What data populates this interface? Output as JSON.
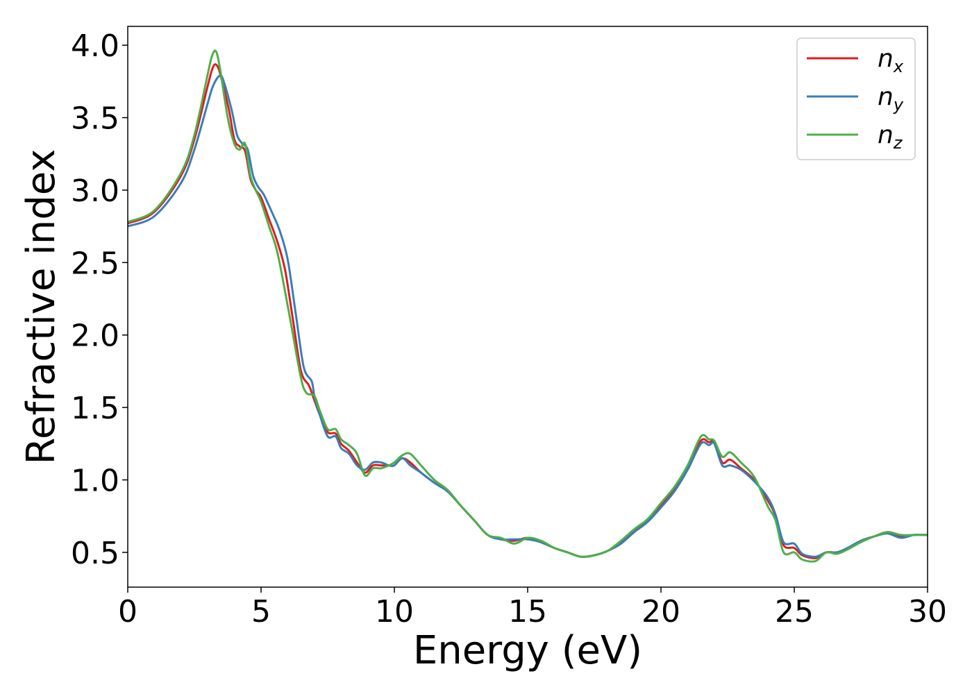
{
  "chart_data": {
    "type": "line",
    "title": "",
    "xlabel": "Energy (eV)",
    "ylabel": "Refractive index",
    "xlim": [
      0,
      30
    ],
    "ylim": [
      0.26,
      4.13
    ],
    "xticks": [
      0,
      5,
      10,
      15,
      20,
      25,
      30
    ],
    "xtick_labels": [
      "0",
      "5",
      "10",
      "15",
      "20",
      "25",
      "30"
    ],
    "yticks": [
      0.5,
      1.0,
      1.5,
      2.0,
      2.5,
      3.0,
      3.5,
      4.0
    ],
    "ytick_labels": [
      "0.5",
      "1.0",
      "1.5",
      "2.0",
      "2.5",
      "3.0",
      "3.5",
      "4.0"
    ],
    "grid": false,
    "legend_position": "top-right",
    "series": [
      {
        "name": "n",
        "subscript": "x",
        "color": "#e41a1c",
        "x": [
          0,
          1,
          2,
          2.5,
          3,
          3.2,
          3.35,
          3.5,
          3.8,
          4.0,
          4.2,
          4.4,
          4.6,
          4.8,
          5.0,
          5.3,
          5.6,
          5.9,
          6.2,
          6.5,
          6.8,
          7.0,
          7.2,
          7.5,
          7.8,
          8.0,
          8.3,
          8.6,
          8.9,
          9.2,
          9.5,
          9.8,
          10.0,
          10.3,
          10.6,
          11.0,
          11.5,
          12.0,
          12.5,
          13.0,
          13.5,
          14.0,
          14.5,
          15.0,
          15.5,
          16.0,
          16.5,
          17.0,
          17.5,
          18.0,
          18.5,
          19.0,
          19.5,
          20.0,
          20.5,
          21.0,
          21.5,
          21.8,
          22.0,
          22.3,
          22.6,
          23.0,
          23.5,
          24.0,
          24.3,
          24.6,
          25.0,
          25.3,
          25.8,
          26.2,
          26.6,
          27.0,
          27.5,
          28.0,
          28.5,
          29.0,
          29.5,
          30.0
        ],
        "y": [
          2.77,
          2.85,
          3.1,
          3.35,
          3.72,
          3.85,
          3.86,
          3.78,
          3.55,
          3.35,
          3.3,
          3.27,
          3.08,
          3.0,
          2.95,
          2.8,
          2.65,
          2.45,
          2.1,
          1.75,
          1.65,
          1.55,
          1.45,
          1.33,
          1.32,
          1.25,
          1.2,
          1.12,
          1.05,
          1.1,
          1.1,
          1.1,
          1.12,
          1.15,
          1.12,
          1.05,
          0.98,
          0.92,
          0.82,
          0.72,
          0.62,
          0.59,
          0.58,
          0.6,
          0.57,
          0.53,
          0.5,
          0.47,
          0.48,
          0.51,
          0.57,
          0.65,
          0.72,
          0.82,
          0.93,
          1.08,
          1.27,
          1.26,
          1.26,
          1.12,
          1.14,
          1.08,
          1.0,
          0.86,
          0.75,
          0.55,
          0.53,
          0.48,
          0.46,
          0.5,
          0.5,
          0.53,
          0.58,
          0.61,
          0.64,
          0.61,
          0.62,
          0.62
        ]
      },
      {
        "name": "n",
        "subscript": "y",
        "color": "#377eb8",
        "x": [
          0,
          1,
          2,
          2.5,
          3,
          3.2,
          3.45,
          3.6,
          3.9,
          4.1,
          4.3,
          4.5,
          4.7,
          4.9,
          5.1,
          5.4,
          5.7,
          6.0,
          6.3,
          6.6,
          6.9,
          7.0,
          7.2,
          7.5,
          7.8,
          8.0,
          8.3,
          8.6,
          8.9,
          9.2,
          9.5,
          9.8,
          10.0,
          10.3,
          10.6,
          11.0,
          11.5,
          12.0,
          12.5,
          13.0,
          13.5,
          14.0,
          14.5,
          15.0,
          15.5,
          16.0,
          16.5,
          17.0,
          17.5,
          18.0,
          18.5,
          19.0,
          19.5,
          20.0,
          20.5,
          21.0,
          21.5,
          21.8,
          22.0,
          22.3,
          22.6,
          23.0,
          23.5,
          24.0,
          24.3,
          24.6,
          25.0,
          25.3,
          25.8,
          26.2,
          26.6,
          27.0,
          27.5,
          28.0,
          28.5,
          29.0,
          29.5,
          30.0
        ],
        "y": [
          2.75,
          2.82,
          3.05,
          3.28,
          3.6,
          3.72,
          3.79,
          3.75,
          3.55,
          3.38,
          3.32,
          3.28,
          3.1,
          3.02,
          2.97,
          2.85,
          2.72,
          2.52,
          2.15,
          1.78,
          1.68,
          1.58,
          1.45,
          1.3,
          1.3,
          1.22,
          1.18,
          1.1,
          1.07,
          1.12,
          1.12,
          1.1,
          1.1,
          1.15,
          1.1,
          1.05,
          0.98,
          0.92,
          0.82,
          0.72,
          0.62,
          0.59,
          0.59,
          0.59,
          0.57,
          0.53,
          0.5,
          0.47,
          0.48,
          0.51,
          0.56,
          0.64,
          0.71,
          0.81,
          0.92,
          1.07,
          1.25,
          1.24,
          1.25,
          1.1,
          1.1,
          1.07,
          0.99,
          0.88,
          0.76,
          0.57,
          0.56,
          0.49,
          0.47,
          0.5,
          0.5,
          0.53,
          0.58,
          0.61,
          0.63,
          0.6,
          0.62,
          0.62
        ]
      },
      {
        "name": "n",
        "subscript": "z",
        "color": "#4daf4a",
        "x": [
          0,
          1,
          2,
          2.5,
          3,
          3.15,
          3.3,
          3.45,
          3.75,
          4.0,
          4.2,
          4.4,
          4.6,
          4.8,
          5.0,
          5.3,
          5.6,
          5.9,
          6.2,
          6.5,
          6.7,
          7.0,
          7.2,
          7.5,
          7.8,
          8.0,
          8.3,
          8.6,
          8.9,
          9.2,
          9.5,
          9.8,
          10.0,
          10.3,
          10.6,
          11.0,
          11.5,
          12.0,
          12.5,
          13.0,
          13.5,
          14.0,
          14.5,
          15.0,
          15.5,
          16.0,
          16.5,
          17.0,
          17.5,
          18.0,
          18.5,
          19.0,
          19.5,
          20.0,
          20.5,
          21.0,
          21.5,
          21.8,
          22.0,
          22.3,
          22.6,
          23.0,
          23.5,
          24.0,
          24.3,
          24.6,
          25.0,
          25.3,
          25.8,
          26.2,
          26.6,
          27.0,
          27.5,
          28.0,
          28.5,
          29.0,
          29.5,
          30.0
        ],
        "y": [
          2.78,
          2.86,
          3.12,
          3.38,
          3.8,
          3.92,
          3.96,
          3.85,
          3.5,
          3.32,
          3.28,
          3.32,
          3.1,
          3.0,
          2.92,
          2.75,
          2.58,
          2.3,
          2.0,
          1.7,
          1.6,
          1.58,
          1.48,
          1.35,
          1.35,
          1.28,
          1.24,
          1.18,
          1.03,
          1.08,
          1.08,
          1.1,
          1.12,
          1.17,
          1.18,
          1.1,
          1.0,
          0.93,
          0.82,
          0.72,
          0.62,
          0.6,
          0.56,
          0.6,
          0.58,
          0.53,
          0.5,
          0.47,
          0.48,
          0.51,
          0.58,
          0.66,
          0.73,
          0.84,
          0.95,
          1.1,
          1.3,
          1.28,
          1.27,
          1.16,
          1.19,
          1.12,
          1.02,
          0.82,
          0.72,
          0.5,
          0.5,
          0.45,
          0.44,
          0.5,
          0.49,
          0.52,
          0.57,
          0.61,
          0.64,
          0.62,
          0.62,
          0.62
        ]
      }
    ]
  }
}
